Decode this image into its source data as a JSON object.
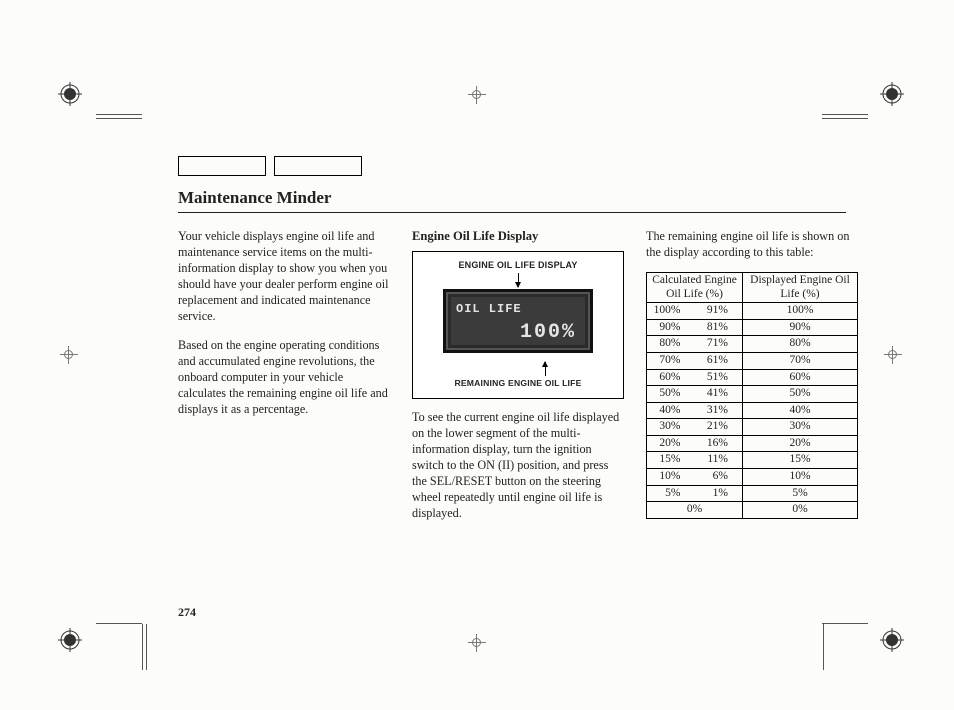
{
  "title": "Maintenance Minder",
  "page_number": "274",
  "col1": {
    "p1": "Your vehicle displays engine oil life and maintenance service items on the multi-information display to show you when you should have your dealer perform engine oil replacement and indicated maintenance service.",
    "p2": "Based on the engine operating conditions and accumulated engine revolutions, the onboard computer in your vehicle calculates the remaining engine oil life and displays it as a percentage."
  },
  "col2": {
    "heading": "Engine Oil Life Display",
    "figure": {
      "top_label": "ENGINE OIL LIFE DISPLAY",
      "bottom_label": "REMAINING ENGINE OIL LIFE",
      "lcd_title": "OIL LIFE",
      "lcd_value": "100%",
      "screen_bg": "#3b3b3b",
      "screen_text": "#e4e4e4"
    },
    "p1": "To see the current engine oil life displayed on the lower segment of the multi-information display, turn the ignition switch to the ON (II) position, and press the SEL/RESET button on the steering wheel repeatedly until engine oil life is displayed."
  },
  "col3": {
    "p1": "The remaining engine oil life is shown on the display according to this table:",
    "table": {
      "head_left": "Calculated Engine Oil Life (%)",
      "head_right": "Displayed Engine Oil Life (%)",
      "rows": [
        {
          "lo": "100%",
          "hi": "91%",
          "disp": "100%"
        },
        {
          "lo": "90%",
          "hi": "81%",
          "disp": "90%"
        },
        {
          "lo": "80%",
          "hi": "71%",
          "disp": "80%"
        },
        {
          "lo": "70%",
          "hi": "61%",
          "disp": "70%"
        },
        {
          "lo": "60%",
          "hi": "51%",
          "disp": "60%"
        },
        {
          "lo": "50%",
          "hi": "41%",
          "disp": "50%"
        },
        {
          "lo": "40%",
          "hi": "31%",
          "disp": "40%"
        },
        {
          "lo": "30%",
          "hi": "21%",
          "disp": "30%"
        },
        {
          "lo": "20%",
          "hi": "16%",
          "disp": "20%"
        },
        {
          "lo": "15%",
          "hi": "11%",
          "disp": "15%"
        },
        {
          "lo": "10%",
          "hi": "6%",
          "disp": "10%"
        },
        {
          "lo": "5%",
          "hi": "1%",
          "disp": "5%"
        },
        {
          "lo": "0%",
          "hi": "",
          "disp": "0%"
        }
      ]
    }
  },
  "colors": {
    "text": "#222",
    "rule": "#222",
    "page_bg": "#fcfcfa"
  }
}
